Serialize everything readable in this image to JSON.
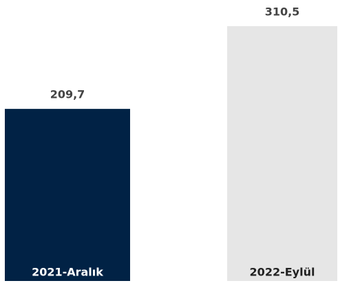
{
  "chart_data": {
    "type": "bar",
    "categories": [
      "2021-Aralık",
      "2022-Eylül"
    ],
    "values": [
      209.7,
      310.5
    ],
    "value_labels": [
      "209,7",
      "310,5"
    ],
    "colors": [
      "#012245",
      "#e6e6e6"
    ]
  }
}
